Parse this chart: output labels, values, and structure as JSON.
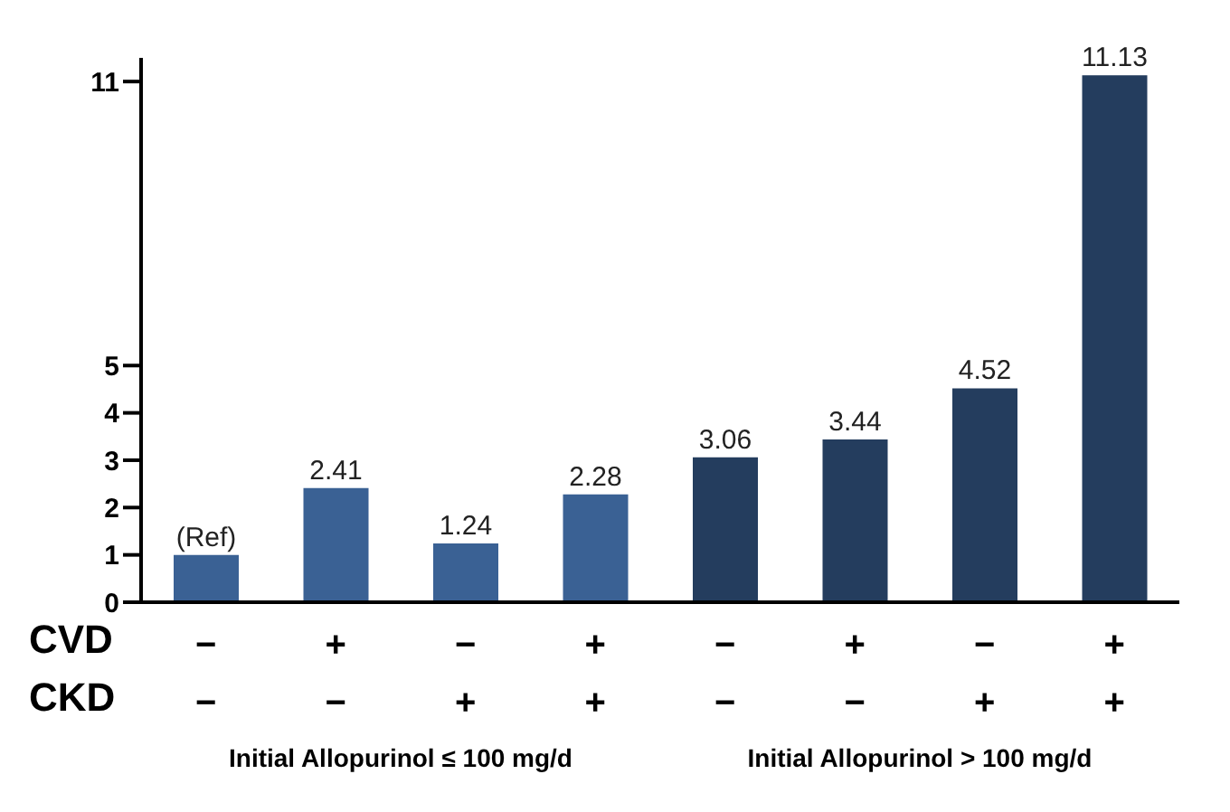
{
  "chart_data": {
    "type": "bar",
    "categories": [
      "−\n−",
      "+\n−",
      "−\n+",
      "+\n+",
      "−\n−",
      "+\n−",
      "−\n+",
      "+\n+"
    ],
    "values": [
      1,
      2.41,
      1.24,
      2.28,
      3.06,
      3.44,
      4.52,
      11.13
    ],
    "value_labels": [
      "(Ref)",
      "2.41",
      "1.24",
      "2.28",
      "3.06",
      "3.44",
      "4.52",
      "11.13"
    ],
    "colors": [
      "#3a6194",
      "#3a6194",
      "#3a6194",
      "#3a6194",
      "#243d5e",
      "#243d5e",
      "#243d5e",
      "#243d5e"
    ],
    "ylim": [
      0,
      11.5
    ],
    "yticks": [
      0,
      1,
      2,
      3,
      4,
      5,
      11
    ],
    "annotations": [
      "CVD",
      "CKD",
      "Initial Allopurinol ≤ 100 mg/d",
      "Initial Allopurinol > 100 mg/d"
    ],
    "grid": false,
    "legend": false
  }
}
